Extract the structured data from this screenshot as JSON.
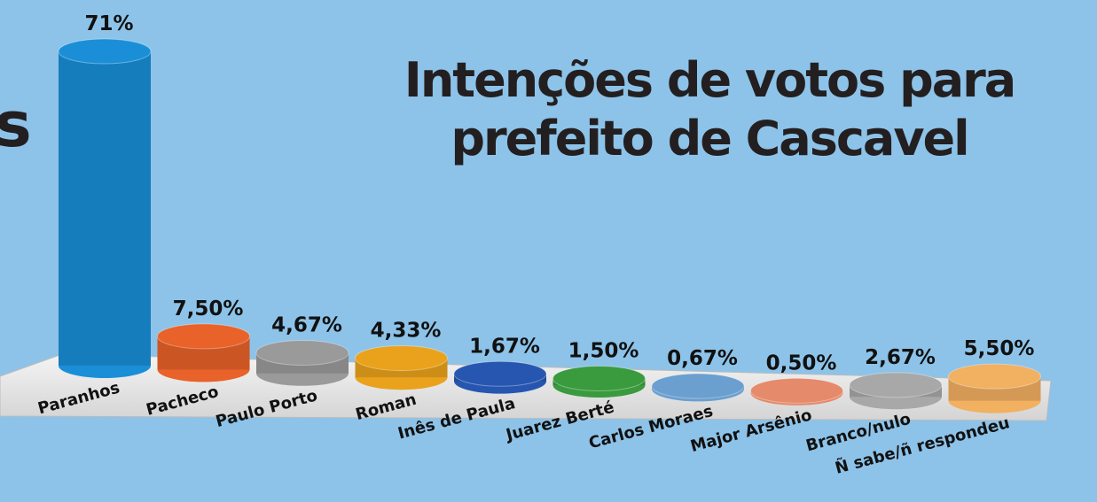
{
  "side_text": "s",
  "chart_data": {
    "type": "bar3d",
    "title": "Intenções de votos para prefeito de Cascavel",
    "categories": [
      "Paranhos",
      "Pacheco",
      "Paulo Porto",
      "Roman",
      "Inês de Paula",
      "Juarez Berté",
      "Carlos Moraes",
      "Major Arsênio",
      "Branco/nulo",
      "Ñ sabe/ñ respondeu"
    ],
    "values": [
      71,
      7.5,
      4.67,
      4.33,
      1.67,
      1.5,
      0.67,
      0.5,
      2.67,
      5.5
    ],
    "value_labels": [
      "71%",
      "7,50%",
      "4,67%",
      "4,33%",
      "1,67%",
      "1,50%",
      "0,67%",
      "0,50%",
      "2,67%",
      "5,50%"
    ],
    "colors": [
      "#1a8fd8",
      "#e8622a",
      "#9a9a9a",
      "#eaa21c",
      "#2756b0",
      "#3a9a3e",
      "#6a9fd0",
      "#e58a6a",
      "#a8a8a8",
      "#f2b061"
    ]
  }
}
